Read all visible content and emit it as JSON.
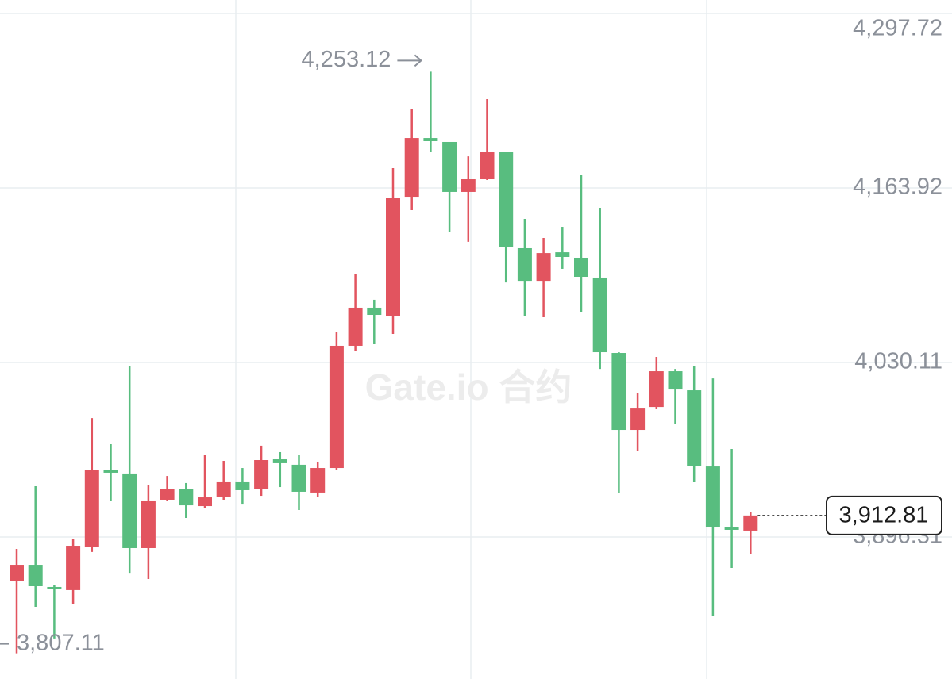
{
  "chart_data": {
    "type": "candlestick",
    "watermark": "Gate.io 合约",
    "categories": [
      null,
      null,
      null,
      null,
      null,
      null,
      null,
      null,
      null,
      null,
      null,
      null,
      null,
      null,
      null,
      null,
      null,
      null,
      null,
      null,
      null,
      null,
      null,
      null,
      null,
      null,
      null,
      null,
      null,
      null,
      null,
      null,
      null,
      null,
      null,
      null,
      null,
      null,
      null,
      null
    ],
    "open": [
      3862.85,
      3875.0,
      3858.0,
      3855.6,
      3888.4,
      3947.4,
      3945.0,
      3887.8,
      3924.9,
      3933.4,
      3920.0,
      3927.3,
      3938.3,
      3932.8,
      3955.9,
      3951.7,
      3930.4,
      3949.2,
      4042.9,
      4072.1,
      4066.0,
      4157.2,
      4202.2,
      4199.2,
      4160.9,
      4170.6,
      4191.3,
      4117.7,
      4092.7,
      4114.6,
      4110.4,
      4095.2,
      4037.4,
      3978.4,
      3996.0,
      4023.4,
      4008.8,
      3950.4,
      3903.6,
      3901.2
    ],
    "high": [
      3887.2,
      3935.2,
      3859.2,
      3894.5,
      3987.5,
      3967.5,
      4027.1,
      3936.4,
      3943.1,
      3937.7,
      3959.0,
      3954.7,
      3949.2,
      3966.3,
      3961.4,
      3959.0,
      3954.1,
      4053.8,
      4097.6,
      4078.2,
      4179.1,
      4224.1,
      4253.12,
      4199.2,
      4188.2,
      4232.0,
      4191.9,
      4140.2,
      4125.6,
      4134.1,
      4173.7,
      4148.7,
      4038.0,
      4007.0,
      4034.4,
      4025.2,
      4027.7,
      4017.9,
      3963.8,
      3915.2
    ],
    "low": [
      3807.11,
      3842.8,
      3818.5,
      3844.6,
      3884.8,
      3923.7,
      3868.9,
      3864.1,
      3923.7,
      3910.9,
      3918.8,
      3924.9,
      3921.2,
      3927.9,
      3934.6,
      3917.0,
      3927.3,
      3948.0,
      4039.2,
      4044.1,
      4052.0,
      4146.9,
      4191.9,
      4129.9,
      4122.6,
      4170.0,
      4091.5,
      4066.0,
      4064.8,
      4101.9,
      4069.0,
      4025.2,
      3929.8,
      3962.6,
      3994.8,
      3982.7,
      3938.3,
      3836.1,
      3872.6,
      3883.5
    ],
    "close": [
      3875.0,
      3858.6,
      3856.2,
      3889.6,
      3947.4,
      3945.6,
      3887.8,
      3924.3,
      3933.4,
      3920.6,
      3926.7,
      3938.3,
      3932.2,
      3955.3,
      3952.9,
      3931.0,
      3949.2,
      4042.9,
      4072.1,
      4066.6,
      4156.6,
      4202.2,
      4199.8,
      4160.9,
      4170.6,
      4191.3,
      4118.3,
      4092.7,
      4114.0,
      4111.0,
      4095.8,
      4038.0,
      3978.4,
      3995.4,
      4023.4,
      4009.4,
      3951.0,
      3903.6,
      3901.8,
      3912.81
    ],
    "up_color": "#e2545f",
    "down_color": "#58bd7f",
    "ylim": [
      3787.44,
      4308.06
    ],
    "yticks": [
      {
        "value": 3896.31,
        "label": "3,896.31"
      },
      {
        "value": 4030.11,
        "label": "4,030.11"
      },
      {
        "value": 4163.92,
        "label": "4,163.92"
      },
      {
        "value": 4297.72,
        "label": "4,297.72"
      }
    ],
    "grid": true,
    "high_label": "4,253.12",
    "low_label": "3,807.11",
    "last_price_label": "3,912.81"
  }
}
